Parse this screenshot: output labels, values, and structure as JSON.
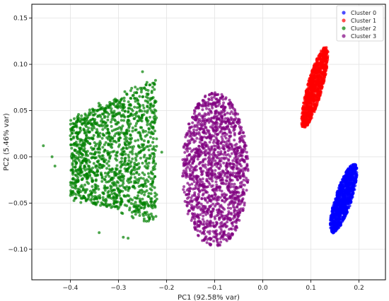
{
  "chart_data": {
    "type": "scatter",
    "xlabel": "PC1 (92.58% var)",
    "ylabel": "PC2 (5.46% var)",
    "xlim": [
      -0.48,
      0.255
    ],
    "ylim": [
      -0.133,
      0.165
    ],
    "xticks": [
      -0.4,
      -0.3,
      -0.2,
      -0.1,
      0.0,
      0.1,
      0.2
    ],
    "xtick_labels": [
      "−0.4",
      "−0.3",
      "−0.2",
      "−0.1",
      "0.0",
      "0.1",
      "0.2"
    ],
    "yticks": [
      -0.1,
      -0.05,
      0.0,
      0.05,
      0.1,
      0.15
    ],
    "ytick_labels": [
      "−0.10",
      "−0.05",
      "0.00",
      "0.05",
      "0.10",
      "0.15"
    ],
    "grid": true,
    "legend_position": "top-right",
    "series": [
      {
        "name": "Cluster 0",
        "color": "#0000ff",
        "center": [
          0.185,
          -0.038
        ],
        "x_range": [
          0.105,
          0.222
        ],
        "y_range": [
          -0.121,
          0.032
        ]
      },
      {
        "name": "Cluster 1",
        "color": "#ff0000",
        "center": [
          0.108,
          0.079
        ],
        "x_range": [
          0.05,
          0.163
        ],
        "y_range": [
          -0.004,
          0.152
        ]
      },
      {
        "name": "Cluster 2",
        "color": "#008000",
        "center": [
          -0.304,
          0.0
        ],
        "x_range": [
          -0.456,
          -0.218
        ],
        "y_range": [
          -0.089,
          0.092
        ]
      },
      {
        "name": "Cluster 3",
        "color": "#800080",
        "center": [
          -0.099,
          -0.014
        ],
        "x_range": [
          -0.18,
          -0.012
        ],
        "y_range": [
          -0.106,
          0.084
        ]
      }
    ]
  }
}
